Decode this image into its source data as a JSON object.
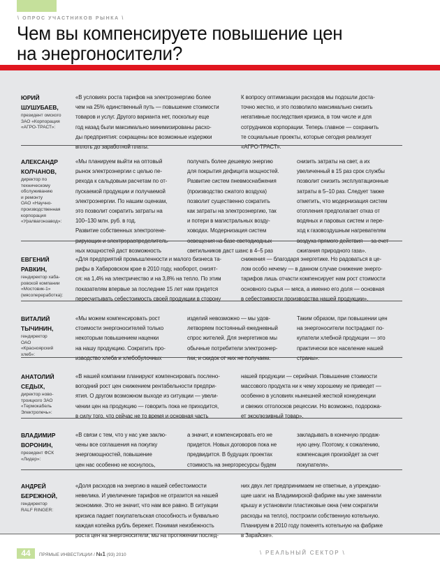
{
  "header": {
    "kicker": "\\ ОПРОС УЧАСТНИКОВ РЫНКА \\",
    "title_line1": "Чем вы компенсируете повышение цен",
    "title_line2": "на энергоносители?"
  },
  "colors": {
    "accent_red": "#e0161f",
    "accent_green": "#c5e09b",
    "background_gray": "#e6e7e9"
  },
  "sections": [
    {
      "name": [
        "ЮРИЙ",
        "ШУШУБАЕВ,"
      ],
      "role": [
        "президент омского",
        "ЗАО «Корпорация",
        "«АГРО-ТРАСТ»:"
      ],
      "columns": [
        [
          "«В условиях роста тарифов на электроэнергию более",
          "чем на 25% единственный путь — повышение стоимости",
          "товаров и услуг. Другого варианта нет, поскольку еще",
          "год назад были максимально минимизированы расхо-",
          "ды предприятия: сокращены все возможные издержки",
          "вплоть до заработной платы."
        ],
        [
          "К вопросу оптимизации расходов мы подошли доста-",
          "точно жестко, и это позволило максимально снизить",
          "негативные последствия кризиса, в том числе и для",
          "сотрудников корпорации. Теперь главное — сохранить",
          "те социальные проекты, которые сегодня реализует",
          "«АГРО-ТРАСТ»."
        ]
      ]
    },
    {
      "name": [
        "АЛЕКСАНДР",
        "КОЛЧАНОВ,"
      ],
      "role": [
        "директор по",
        "техническому",
        "обслуживанию",
        "и ремонту",
        "ОАО «Научно-",
        "производственная",
        "корпорация",
        "«Уралвагонзавод»:"
      ],
      "columns": [
        [
          "«Мы планируем выйти на оптовый",
          "рынок электроэнергии с целью пе-",
          "рехода к сальдовым расчетам по от-",
          "пускаемой продукции и получаемой",
          "электроэнергии. По нашим оценкам,",
          "это позволит сократить затраты на",
          "100–130 млн. руб. в год.",
          "Развитие собственных электрогене-",
          "рирующих и электрораспределитель-",
          "ных мощностей даст возможность"
        ],
        [
          "получать более дешевую энергию",
          "для покрытия дефицита мощностей.",
          "Развитие систем пневмоснабжения",
          "(производство сжатого воздуха)",
          "позволит существенно сократить",
          "как затраты на электроэнергию, так",
          "и потери в магистральных возду-",
          "ховодах. Модернизация систем",
          "освещения на базе светодиодных",
          "светильников даст шанс в 4–5 раз"
        ],
        [
          "снизить затраты на свет, а их",
          "увеличенный в 15 раз срок службы",
          "позволит снизить эксплуатационные",
          "затраты в 5–10 раз. Следует также",
          "отметить, что модернизация систем",
          "отопления предполагает отказ от",
          "водяных и паровых систем и пере-",
          "ход к газовоздушным нагревателям",
          "воздуха прямого действия — за счет",
          "сжигания природного газа»."
        ]
      ]
    },
    {
      "name": [
        "ЕВГЕНИЙ",
        "РАВКИН,"
      ],
      "role": [
        "гендиректор хаба-",
        "ровской компании",
        "«Мостовик-1»",
        "(мясопереработка):"
      ],
      "columns": [
        [
          "«Для предприятий промышленности и малого бизнеса та-",
          "рифы в Хабаровском крае в 2010 году, наоборот, снизят-",
          "ся: на 1,4% на электричество и на 3,8% на тепло. По этим",
          "показателям впервые за последние 15 лет нам придется",
          "пересчитывать себестоимость своей продукции в сторону"
        ],
        [
          "снижения — благодаря энергетике. Но радоваться в це-",
          "лом особо нечему — в данном случае снижение энерго-",
          "тарифов лишь отчасти компенсирует нам рост стоимости",
          "основного сырья — мяса, а именно его доля — основная",
          "в себестоимости производства нашей продукции»."
        ]
      ]
    },
    {
      "name": [
        "ВИТАЛИЙ",
        "ТЫЧИНИН,"
      ],
      "role": [
        "гендиректор",
        "ОАО",
        "«Красноярский",
        "хлеб»:"
      ],
      "columns": [
        [
          "«Мы можем компенсировать рост",
          "стоимости энергоносителей только",
          "некоторым повышением наценки",
          "на нашу продукцию. Сократить про-",
          "изводство хлеба и хлебобулочных"
        ],
        [
          "изделий невозможно — мы удов-",
          "летворяем постоянный ежедневный",
          "спрос жителей. Для энергетиков мы",
          "обычные потребители электроэнер-",
          "гии, и скидок от них не получаем."
        ],
        [
          "Таким образом, при повышении цен",
          "на энергоносители пострадают по-",
          "купатели хлебной продукции — это",
          "практически все население нашей",
          "страны»."
        ]
      ]
    },
    {
      "name": [
        "АНАТОЛИЙ",
        "СЕДЫХ,"
      ],
      "role": [
        "директор ново-",
        "троицкого ЗАО",
        "«Термокабель",
        "Электропечь»:"
      ],
      "columns": [
        [
          "«В нашей компании планируют компенсировать послено-",
          "вогодний рост цен снижением рентабельности предпри-",
          "ятия. О другом возможном выходе из ситуации — увели-",
          "чении цен на продукцию — говорить пока не приходится,",
          "в силу того, что сейчас не то время и основная часть"
        ],
        [
          "нашей продукции — серийная. Повышение стоимости",
          "массового продукта ни к чему хорошему не приведет —",
          "особенно в условиях нынешней жесткой конкуренции",
          "и свежих отголосков рецессии. Но возможно, подорожа-",
          "ет эксклюзивный товар»."
        ]
      ]
    },
    {
      "name": [
        "ВЛАДИМИР",
        "ВОРОНИН,"
      ],
      "role": [
        "президент ФСК",
        "«Лидер»:"
      ],
      "columns": [
        [
          "«В связи с тем, что у нас уже заклю-",
          "чены все соглашения на покупку",
          "энергомощностей, повышение",
          "цен нас особенно не коснулось,"
        ],
        [
          "а значит, и компенсировать его не",
          "придется. Новых договоров пока не",
          "предвидится. В будущих проектах",
          "стоимость на энергоресурсы будем"
        ],
        [
          "закладывать в конечную продаж-",
          "ную цену. Поэтому, к сожалению,",
          "компенсация произойдет за счет",
          "покупателя»."
        ]
      ]
    },
    {
      "name": [
        "АНДРЕЙ",
        "БЕРЕЖНОЙ,"
      ],
      "role": [
        "гендиректор",
        "RALF RINGER:"
      ],
      "columns": [
        [
          "«Доля расходов на энергию в нашей себестоимости",
          "невелика. И увеличение тарифов не отразится на нашей",
          "экономике. Это не значит, что нам все равно. В ситуации",
          "кризиса падает покупательская способность и буквально",
          "каждая копейка рубль бережет. Понимая неизбежность",
          "роста цен на энергоносители, мы на протяжении послед-"
        ],
        [
          "них двух лет предпринимаем не ответные, а упреждаю-",
          "щие шаги: на Владимирской фабрике мы уже заменили",
          "крышу и установили пластиковые окна (чем сократили",
          "расходы на тепло), построили собственную котельную.",
          "Планируем в 2010 году поменять котельную на фабрике",
          "в Зарайске»."
        ]
      ]
    }
  ],
  "footer": {
    "page_number": "44",
    "magazine": "ПРЯМЫЕ ИНВЕСТИЦИИ /",
    "issue_no": "№1",
    "issue_rest": "(93) 2010",
    "section": "\\ РЕАЛЬНЫЙ СЕКТОР \\"
  }
}
